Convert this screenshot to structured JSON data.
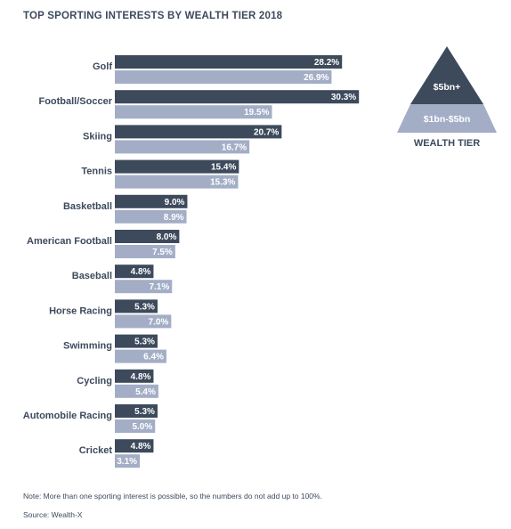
{
  "chart_data": {
    "type": "bar",
    "orientation": "horizontal",
    "title": "TOP SPORTING INTERESTS BY WEALTH TIER 2018",
    "categories": [
      "Golf",
      "Football/Soccer",
      "Skiing",
      "Tennis",
      "Basketball",
      "American Football",
      "Baseball",
      "Horse Racing",
      "Swimming",
      "Cycling",
      "Automobile Racing",
      "Cricket"
    ],
    "series": [
      {
        "name": "$5bn+",
        "color": "#3d4a5c",
        "values": [
          28.2,
          30.3,
          20.7,
          15.4,
          9.0,
          8.0,
          4.8,
          5.3,
          5.3,
          4.8,
          5.3,
          4.8
        ],
        "labels": [
          "28.2%",
          "30.3%",
          "20.7%",
          "15.4%",
          "9.0%",
          "8.0%",
          "4.8%",
          "5.3%",
          "5.3%",
          "4.8%",
          "5.3%",
          "4.8%"
        ]
      },
      {
        "name": "$1bn-$5bn",
        "color": "#a3aec6",
        "values": [
          26.9,
          19.5,
          16.7,
          15.3,
          8.9,
          7.5,
          7.1,
          7.0,
          6.4,
          5.4,
          5.0,
          3.1
        ],
        "labels": [
          "26.9%",
          "19.5%",
          "16.7%",
          "15.3%",
          "8.9%",
          "7.5%",
          "7.1%",
          "7.0%",
          "6.4%",
          "5.4%",
          "5.0%",
          "3.1%"
        ]
      }
    ],
    "legend": {
      "title": "WEALTH TIER",
      "shape": "pyramid",
      "placement": "top-right"
    },
    "grid": false
  },
  "note": "Note: More than one sporting interest is possible, so the numbers do not add up to 100%.",
  "source": "Source: Wealth-X"
}
